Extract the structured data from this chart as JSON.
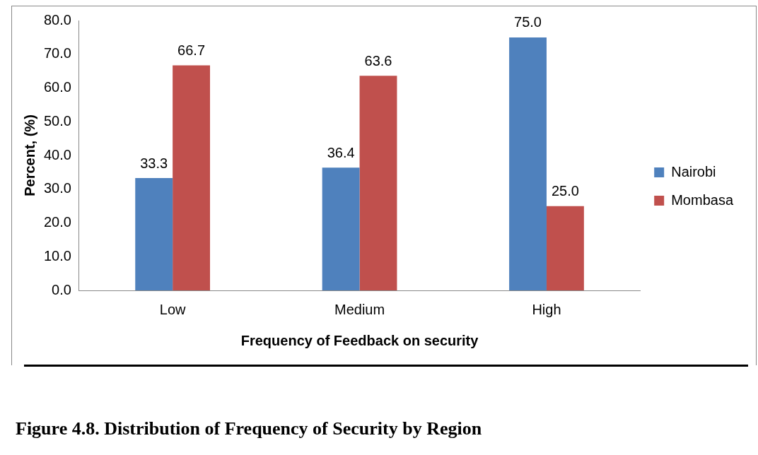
{
  "chart_data": {
    "type": "bar",
    "title": "Figure 4.8. Distribution of Frequency of Security by Region",
    "xlabel": "Frequency of Feedback on security",
    "ylabel": "Percent, (%)",
    "categories": [
      "Low",
      "Medium",
      "High"
    ],
    "series": [
      {
        "name": "Nairobi",
        "color": "#4f81bd",
        "values": [
          33.3,
          36.4,
          75.0
        ],
        "value_labels": [
          "33.3",
          "36.4",
          "75.0"
        ]
      },
      {
        "name": "Mombasa",
        "color": "#c0504d",
        "values": [
          66.7,
          63.6,
          25.0
        ],
        "value_labels": [
          "66.7",
          "63.6",
          "25.0"
        ]
      }
    ],
    "ylim": [
      0,
      80
    ],
    "yticks": [
      {
        "value": 0,
        "label": "0.0"
      },
      {
        "value": 10,
        "label": "10.0"
      },
      {
        "value": 20,
        "label": "20.0"
      },
      {
        "value": 30,
        "label": "30.0"
      },
      {
        "value": 40,
        "label": "40.0"
      },
      {
        "value": 50,
        "label": "50.0"
      },
      {
        "value": 60,
        "label": "60.0"
      },
      {
        "value": 70,
        "label": "70.0"
      },
      {
        "value": 80,
        "label": "80.0"
      }
    ],
    "grid": false,
    "legend": "right"
  }
}
